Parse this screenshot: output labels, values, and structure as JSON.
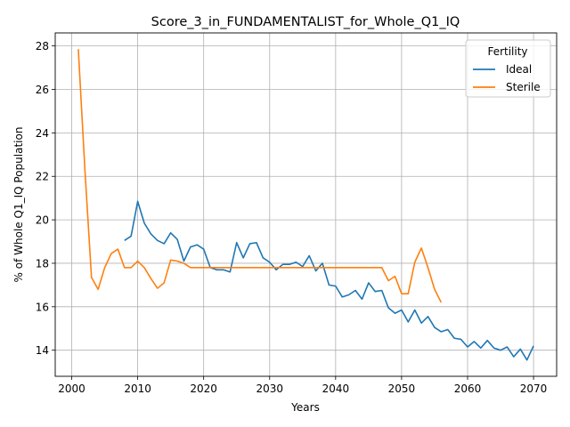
{
  "chart_data": {
    "type": "line",
    "title": "Score_3_in_FUNDAMENTALIST_for_Whole_Q1_IQ",
    "xlabel": "Years",
    "ylabel": "% of Whole Q1_IQ Population",
    "xlim": [
      1997.5,
      2073.5
    ],
    "ylim": [
      12.8,
      28.6
    ],
    "xticks": [
      2000,
      2010,
      2020,
      2030,
      2040,
      2050,
      2060,
      2070
    ],
    "yticks": [
      14,
      16,
      18,
      20,
      22,
      24,
      26,
      28
    ],
    "grid": true,
    "legend": {
      "title": "Fertility",
      "placement": "top-right"
    },
    "series": [
      {
        "name": "Ideal",
        "color": "#1f77b4",
        "x": [
          2008,
          2009,
          2010,
          2011,
          2012,
          2013,
          2014,
          2015,
          2016,
          2017,
          2018,
          2019,
          2020,
          2021,
          2022,
          2023,
          2024,
          2025,
          2026,
          2027,
          2028,
          2029,
          2030,
          2031,
          2032,
          2033,
          2034,
          2035,
          2036,
          2037,
          2038,
          2039,
          2040,
          2041,
          2042,
          2043,
          2044,
          2045,
          2046,
          2047,
          2048,
          2049,
          2050,
          2051,
          2052,
          2053,
          2054,
          2055,
          2056,
          2057,
          2058,
          2059,
          2060,
          2061,
          2062,
          2063,
          2064,
          2065,
          2066,
          2067,
          2068,
          2069,
          2070
        ],
        "values": [
          19.05,
          19.25,
          20.85,
          19.85,
          19.35,
          19.05,
          18.9,
          19.4,
          19.1,
          18.1,
          18.75,
          18.85,
          18.65,
          17.8,
          17.7,
          17.7,
          17.6,
          18.95,
          18.25,
          18.9,
          18.95,
          18.25,
          18.05,
          17.7,
          17.95,
          17.95,
          18.05,
          17.85,
          18.35,
          17.65,
          18.0,
          17.0,
          16.95,
          16.45,
          16.55,
          16.75,
          16.35,
          17.1,
          16.7,
          16.75,
          15.95,
          15.7,
          15.85,
          15.3,
          15.85,
          15.25,
          15.55,
          15.05,
          14.85,
          14.95,
          14.55,
          14.5,
          14.15,
          14.4,
          14.1,
          14.45,
          14.1,
          14.0,
          14.15,
          13.7,
          14.05,
          13.55,
          14.2
        ]
      },
      {
        "name": "Sterile",
        "color": "#ff7f0e",
        "x": [
          2001,
          2002,
          2003,
          2004,
          2005,
          2006,
          2007,
          2008,
          2009,
          2010,
          2011,
          2012,
          2013,
          2014,
          2015,
          2016,
          2017,
          2018,
          2019,
          2020,
          2021,
          2022,
          2023,
          2024,
          2025,
          2026,
          2027,
          2028,
          2029,
          2030,
          2031,
          2032,
          2033,
          2034,
          2035,
          2036,
          2037,
          2038,
          2039,
          2040,
          2041,
          2042,
          2043,
          2044,
          2045,
          2046,
          2047,
          2048,
          2049,
          2050,
          2051,
          2052,
          2053,
          2054,
          2055,
          2056
        ],
        "values": [
          27.85,
          22.3,
          17.35,
          16.8,
          17.8,
          18.45,
          18.65,
          17.8,
          17.8,
          18.1,
          17.8,
          17.3,
          16.85,
          17.1,
          18.15,
          18.1,
          18.0,
          17.8,
          17.8,
          17.8,
          17.8,
          17.8,
          17.8,
          17.8,
          17.8,
          17.8,
          17.8,
          17.8,
          17.8,
          17.8,
          17.8,
          17.8,
          17.8,
          17.8,
          17.8,
          17.8,
          17.8,
          17.8,
          17.8,
          17.8,
          17.8,
          17.8,
          17.8,
          17.8,
          17.8,
          17.8,
          17.8,
          17.2,
          17.4,
          16.6,
          16.6,
          18.05,
          18.7,
          17.8,
          16.8,
          16.2
        ]
      }
    ]
  }
}
